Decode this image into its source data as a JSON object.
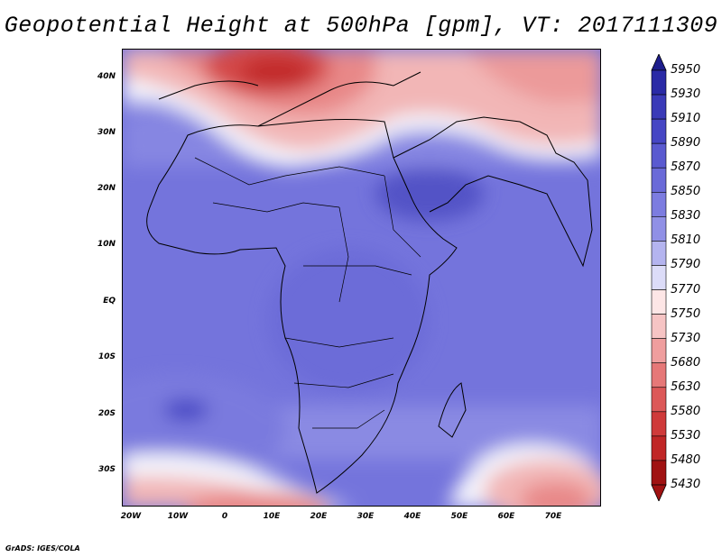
{
  "title": "Geopotential Height at 500hPa [gpm], VT: 2017111309",
  "credit": "GrADS: IGES/COLA",
  "map": {
    "lat_labels": [
      "40N",
      "30N",
      "20N",
      "10N",
      "EQ",
      "10S",
      "20S",
      "30S"
    ],
    "lon_labels": [
      "20W",
      "10W",
      "0",
      "10E",
      "20E",
      "30E",
      "40E",
      "50E",
      "60E",
      "70E"
    ],
    "lat_range": [
      -36.5,
      45
    ],
    "lon_range": [
      -22,
      80
    ]
  },
  "colorbar": {
    "levels": [
      "5950",
      "5930",
      "5910",
      "5890",
      "5870",
      "5850",
      "5830",
      "5810",
      "5790",
      "5770",
      "5750",
      "5730",
      "5680",
      "5630",
      "5580",
      "5530",
      "5480",
      "5430"
    ],
    "colors": [
      "#1e1e8c",
      "#2a2aa6",
      "#3a3ab8",
      "#4646c4",
      "#5a5ad0",
      "#6a6ad8",
      "#7c7ce0",
      "#9090e6",
      "#b4b4ef",
      "#dcdcf8",
      "#fde6e6",
      "#f6c4c4",
      "#ef9e9e",
      "#e67878",
      "#dc5858",
      "#cf3a3a",
      "#c02626",
      "#a01212"
    ]
  },
  "legend_colors": {
    "ocean_mid": "#7474dc",
    "warm_high": "#ef9e9e"
  }
}
